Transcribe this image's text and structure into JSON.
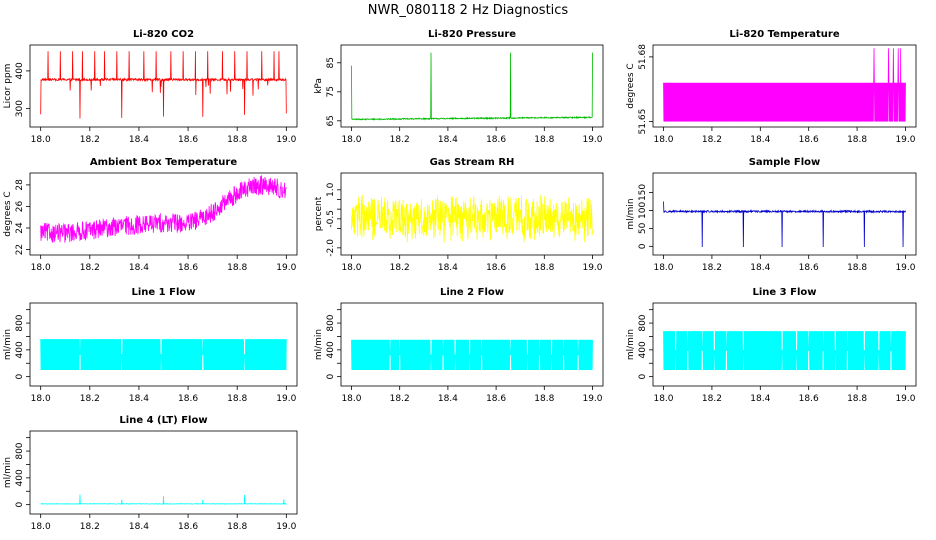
{
  "figure_title": "NWR_080118  2 Hz Diagnostics",
  "colors": {
    "red": "#ff0000",
    "green": "#00bb00",
    "magenta": "#ff00ff",
    "yellow": "#ffff00",
    "blue": "#0000cc",
    "cyan": "#00ffff"
  },
  "chart_data": [
    {
      "id": "co2",
      "type": "line",
      "title": "Li-820 CO2",
      "xlabel": "",
      "ylabel": "Licor ppm",
      "color": "red",
      "xlim": [
        18.0,
        19.0
      ],
      "ylim": [
        260,
        460
      ],
      "xticks": [
        18.0,
        18.2,
        18.4,
        18.6,
        18.8,
        19.0
      ],
      "xtick_labels": [
        "18.0",
        "18.2",
        "18.4",
        "18.6",
        "18.8",
        "19.0"
      ],
      "yticks": [
        300,
        400
      ],
      "ytick_labels": [
        "300",
        "400"
      ],
      "pattern": {
        "kind": "spiky",
        "base": 377,
        "noise": 3,
        "spike_up_to": 452,
        "spike_down_to": 270,
        "up_spikes": [
          18.03,
          18.08,
          18.13,
          18.17,
          18.22,
          18.26,
          18.31,
          18.36,
          18.42,
          18.47,
          18.53,
          18.58,
          18.63,
          18.68,
          18.74,
          18.79,
          18.84,
          18.9,
          18.95,
          18.97
        ],
        "down_spikes": [
          18.0,
          18.16,
          18.33,
          18.5,
          18.66,
          18.83,
          19.0
        ]
      }
    },
    {
      "id": "pressure",
      "type": "line",
      "title": "Li-820 Pressure",
      "xlabel": "",
      "ylabel": "kPa",
      "color": "green",
      "xlim": [
        18.0,
        19.0
      ],
      "ylim": [
        64,
        90
      ],
      "xticks": [
        18.0,
        18.2,
        18.4,
        18.6,
        18.8,
        19.0
      ],
      "xtick_labels": [
        "18.0",
        "18.2",
        "18.4",
        "18.6",
        "18.8",
        "19.0"
      ],
      "yticks": [
        65,
        75,
        85
      ],
      "ytick_labels": [
        "65",
        "75",
        "85"
      ],
      "pattern": {
        "kind": "flat_with_spikes",
        "base_start": 65.5,
        "base_end": 66.2,
        "spike_to": 88.5,
        "first_spike_to": 84,
        "spikes": [
          18.0,
          18.33,
          18.66,
          19.0
        ]
      }
    },
    {
      "id": "temperature",
      "type": "line",
      "title": "Li-820 Temperature",
      "xlabel": "",
      "ylabel": "degrees C",
      "color": "magenta",
      "xlim": [
        18.0,
        19.0
      ],
      "ylim": [
        51.649,
        51.684
      ],
      "xticks": [
        18.0,
        18.2,
        18.4,
        18.6,
        18.8,
        19.0
      ],
      "xtick_labels": [
        "18.0",
        "18.2",
        "18.4",
        "18.6",
        "18.8",
        "19.0"
      ],
      "yticks": [
        51.65,
        51.68
      ],
      "ytick_labels": [
        "51.65",
        "51.68"
      ],
      "pattern": {
        "kind": "band",
        "low": 51.65,
        "high": 51.668,
        "top_spike": 51.684,
        "top_spikes": [
          18.87,
          18.93,
          18.95,
          18.97,
          18.98
        ]
      }
    },
    {
      "id": "ambient",
      "type": "line",
      "title": "Ambient Box Temperature",
      "xlabel": "",
      "ylabel": "degrees C",
      "color": "magenta",
      "xlim": [
        18.0,
        19.0
      ],
      "ylim": [
        21.8,
        28.8
      ],
      "xticks": [
        18.0,
        18.2,
        18.4,
        18.6,
        18.8,
        19.0
      ],
      "xtick_labels": [
        "18.0",
        "18.2",
        "18.4",
        "18.6",
        "18.8",
        "19.0"
      ],
      "yticks": [
        22,
        24,
        26,
        28
      ],
      "ytick_labels": [
        "22",
        "24",
        "26",
        "28"
      ],
      "pattern": {
        "kind": "noisy_trend",
        "amplitude": 0.9,
        "trend": [
          [
            18.0,
            23.6
          ],
          [
            18.1,
            23.5
          ],
          [
            18.2,
            23.8
          ],
          [
            18.3,
            24.1
          ],
          [
            18.4,
            24.3
          ],
          [
            18.5,
            24.5
          ],
          [
            18.6,
            24.4
          ],
          [
            18.65,
            24.8
          ],
          [
            18.7,
            25.5
          ],
          [
            18.75,
            26.3
          ],
          [
            18.8,
            27.2
          ],
          [
            18.85,
            27.8
          ],
          [
            18.9,
            28.0
          ],
          [
            18.95,
            27.8
          ],
          [
            19.0,
            27.4
          ]
        ]
      }
    },
    {
      "id": "rh",
      "type": "line",
      "title": "Gas Stream RH",
      "xlabel": "",
      "ylabel": "percent",
      "color": "yellow",
      "xlim": [
        18.0,
        19.0
      ],
      "ylim": [
        -2.2,
        1.7
      ],
      "xticks": [
        18.0,
        18.2,
        18.4,
        18.6,
        18.8,
        19.0
      ],
      "xtick_labels": [
        "18.0",
        "18.2",
        "18.4",
        "18.6",
        "18.8",
        "19.0"
      ],
      "yticks": [
        -2.0,
        -0.5,
        1.0
      ],
      "ytick_labels": [
        "-2.0",
        "-0.5",
        "1.0"
      ],
      "yticks_minor": [
        -1.0,
        0.0,
        0.5
      ],
      "pattern": {
        "kind": "noise_band",
        "center": -0.45,
        "amplitude": 1.3
      }
    },
    {
      "id": "sample",
      "type": "line",
      "title": "Sample Flow",
      "xlabel": "",
      "ylabel": "ml/min",
      "color": "blue",
      "xlim": [
        18.0,
        19.0
      ],
      "ylim": [
        -15,
        195
      ],
      "xticks": [
        18.0,
        18.2,
        18.4,
        18.6,
        18.8,
        19.0
      ],
      "xtick_labels": [
        "18.0",
        "18.2",
        "18.4",
        "18.6",
        "18.8",
        "19.0"
      ],
      "yticks": [
        0,
        50,
        100,
        150
      ],
      "ytick_labels": [
        "0",
        "50",
        "100",
        "150"
      ],
      "pattern": {
        "kind": "flow_with_dips",
        "base": 97,
        "noise": 2.5,
        "dip_to": -2,
        "up_to": 125,
        "dips": [
          18.16,
          18.33,
          18.49,
          18.66,
          18.83,
          18.99
        ],
        "ups": [
          18.0,
          18.33,
          18.66
        ]
      }
    },
    {
      "id": "line1",
      "type": "line",
      "title": "Line 1 Flow",
      "xlabel": "",
      "ylabel": "ml/min",
      "color": "cyan",
      "xlim": [
        18.0,
        19.0
      ],
      "ylim": [
        -90,
        1050
      ],
      "xticks": [
        18.0,
        18.2,
        18.4,
        18.6,
        18.8,
        19.0
      ],
      "xtick_labels": [
        "18.0",
        "18.2",
        "18.4",
        "18.6",
        "18.8",
        "19.0"
      ],
      "yticks": [
        0,
        400,
        800
      ],
      "ytick_labels": [
        "0",
        "400",
        "800"
      ],
      "yticks_minor": [
        200,
        600,
        1000
      ],
      "pattern": {
        "kind": "block",
        "low": 100,
        "high": 560,
        "gaps": [
          18.16,
          18.33,
          18.49,
          18.66,
          18.83
        ]
      }
    },
    {
      "id": "line2",
      "type": "line",
      "title": "Line 2 Flow",
      "xlabel": "",
      "ylabel": "ml/min",
      "color": "cyan",
      "xlim": [
        18.0,
        19.0
      ],
      "ylim": [
        -90,
        1050
      ],
      "xticks": [
        18.0,
        18.2,
        18.4,
        18.6,
        18.8,
        19.0
      ],
      "xtick_labels": [
        "18.0",
        "18.2",
        "18.4",
        "18.6",
        "18.8",
        "19.0"
      ],
      "yticks": [
        0,
        400,
        800
      ],
      "ytick_labels": [
        "0",
        "400",
        "800"
      ],
      "yticks_minor": [
        200,
        600,
        1000
      ],
      "pattern": {
        "kind": "block",
        "low": 100,
        "high": 550,
        "gaps": [
          18.16,
          18.2,
          18.33,
          18.38,
          18.43,
          18.49,
          18.54,
          18.66,
          18.73,
          18.78,
          18.83,
          18.88,
          18.94
        ]
      }
    },
    {
      "id": "line3",
      "type": "line",
      "title": "Line 3 Flow",
      "xlabel": "",
      "ylabel": "ml/min",
      "color": "cyan",
      "xlim": [
        18.0,
        19.0
      ],
      "ylim": [
        -90,
        1050
      ],
      "xticks": [
        18.0,
        18.2,
        18.4,
        18.6,
        18.8,
        19.0
      ],
      "xtick_labels": [
        "18.0",
        "18.2",
        "18.4",
        "18.6",
        "18.8",
        "19.0"
      ],
      "yticks": [
        0,
        400,
        800
      ],
      "ytick_labels": [
        "0",
        "400",
        "800"
      ],
      "yticks_minor": [
        200,
        600,
        1000
      ],
      "pattern": {
        "kind": "block",
        "low": 100,
        "high": 680,
        "gaps": [
          18.05,
          18.1,
          18.16,
          18.21,
          18.26,
          18.33,
          18.49,
          18.55,
          18.6,
          18.66,
          18.71,
          18.76,
          18.83,
          18.89,
          18.94
        ]
      }
    },
    {
      "id": "line4",
      "type": "line",
      "title": "Line 4 (LT) Flow",
      "xlabel": "",
      "ylabel": "ml/min",
      "color": "cyan",
      "xlim": [
        18.0,
        19.0
      ],
      "ylim": [
        -90,
        1050
      ],
      "xticks": [
        18.0,
        18.2,
        18.4,
        18.6,
        18.8,
        19.0
      ],
      "xtick_labels": [
        "18.0",
        "18.2",
        "18.4",
        "18.6",
        "18.8",
        "19.0"
      ],
      "yticks": [
        0,
        400,
        800
      ],
      "ytick_labels": [
        "0",
        "400",
        "800"
      ],
      "yticks_minor": [
        200,
        600,
        1000
      ],
      "pattern": {
        "kind": "near_zero_with_spikes",
        "base": 12,
        "noise": 4,
        "spikes": [
          [
            18.16,
            150
          ],
          [
            18.33,
            75
          ],
          [
            18.5,
            130
          ],
          [
            18.66,
            70
          ],
          [
            18.83,
            145
          ],
          [
            18.99,
            80
          ]
        ]
      }
    }
  ]
}
